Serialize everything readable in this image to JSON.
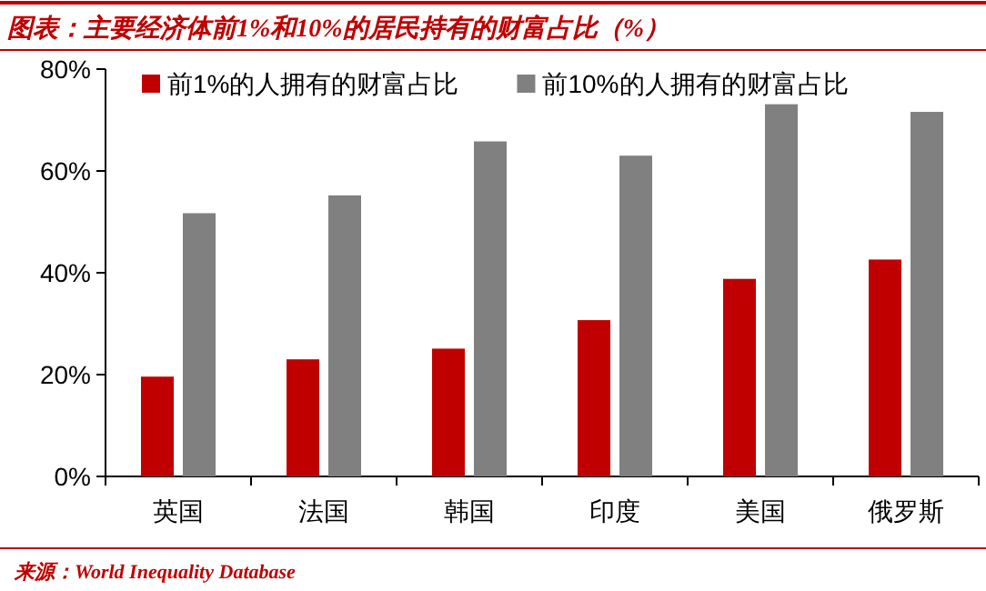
{
  "chart_data": {
    "type": "bar",
    "title": "图表：主要经济体前1%和10%的居民持有的财富占比（%）",
    "categories": [
      "英国",
      "法国",
      "韩国",
      "印度",
      "美国",
      "俄罗斯"
    ],
    "series": [
      {
        "name": "前1%的人拥有的财富占比",
        "color": "#c00000",
        "values": [
          19.6,
          23.0,
          25.1,
          30.7,
          38.8,
          42.6
        ]
      },
      {
        "name": "前10%的人拥有的财富占比",
        "color": "#808080",
        "values": [
          51.7,
          55.2,
          65.8,
          63.0,
          73.1,
          71.6
        ]
      }
    ],
    "ylim": [
      0,
      80
    ],
    "yticks": [
      {
        "value": 0,
        "label": "0%"
      },
      {
        "value": 20,
        "label": "20%"
      },
      {
        "value": 40,
        "label": "40%"
      },
      {
        "value": 60,
        "label": "60%"
      },
      {
        "value": 80,
        "label": "80%"
      }
    ],
    "legend": "top",
    "grid": false,
    "annotations": [
      "来源：World Inequality Database"
    ]
  }
}
